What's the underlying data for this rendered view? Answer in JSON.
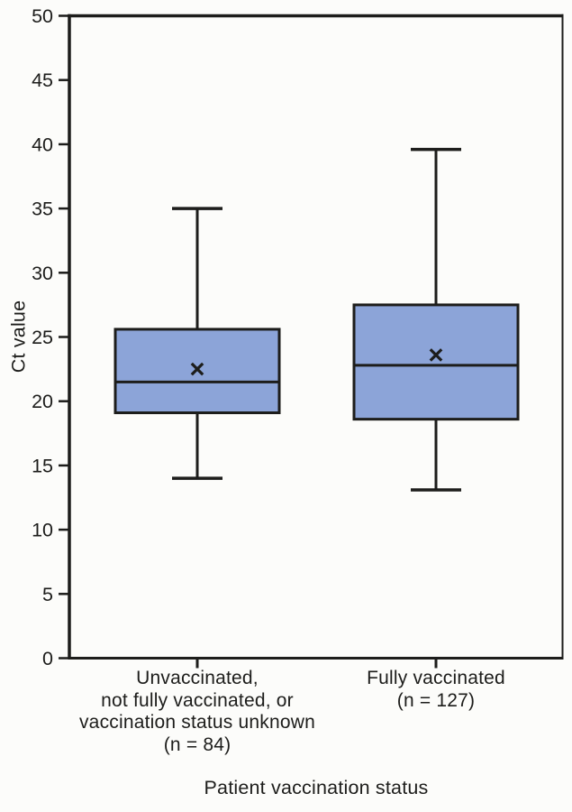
{
  "chart_data": {
    "type": "boxplot",
    "title": "",
    "xlabel": "Patient vaccination status",
    "ylabel": "Ct value",
    "ylim": [
      0,
      50
    ],
    "yticks": [
      0,
      5,
      10,
      15,
      20,
      25,
      30,
      35,
      40,
      45,
      50
    ],
    "grid": false,
    "frame": true,
    "categories": [
      {
        "label_lines": [
          "Unvaccinated,",
          "not fully vaccinated, or",
          "vaccination status unknown",
          "(n = 84)"
        ]
      },
      {
        "label_lines": [
          "Fully vaccinated",
          "(n = 127)"
        ]
      }
    ],
    "series": [
      {
        "name": "Unvaccinated, not fully vaccinated, or vaccination status unknown",
        "n": 84,
        "whisker_low": 14.0,
        "q1": 19.1,
        "median": 21.5,
        "mean": 22.5,
        "q3": 25.6,
        "whisker_high": 35.0
      },
      {
        "name": "Fully vaccinated",
        "n": 127,
        "whisker_low": 13.1,
        "q1": 18.6,
        "median": 22.8,
        "mean": 23.6,
        "q3": 27.5,
        "whisker_high": 39.6
      }
    ],
    "colors": {
      "box_fill": "#8ca4d8",
      "line": "#1d1d1b",
      "background": "#fcfcfa"
    }
  }
}
